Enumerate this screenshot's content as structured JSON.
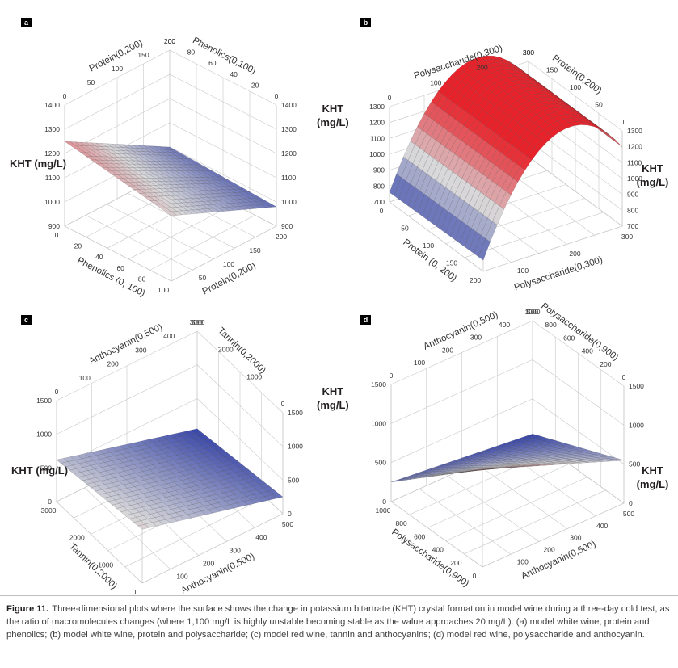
{
  "caption": {
    "title": "Figure 11.",
    "text": "Three-dimensional plots where the surface shows the change in potassium bitartrate (KHT) crystal formation in model wine during a three-day cold test, as the ratio of macromolecules changes (where 1,100 mg/L is highly unstable becoming stable as the value approaches 20 mg/L). (a) model white wine, protein and phenolics; (b) model white wine, protein and polysaccharide; (c) model red wine, tannin and anthocyanins; (d) model red wine, polysaccharide and anthocyanin."
  },
  "colors": {
    "high": "#e8222a",
    "mid": "#d8d8da",
    "low": "#2b3aa5",
    "grid": "#c8c8c8"
  },
  "chart_data": [
    {
      "panel": "a",
      "type": "surface",
      "zlabel": "KHT (mg/L)",
      "axes": {
        "front_left": {
          "label": "Phenolics (0, 100)",
          "ticks": [
            "0",
            "20",
            "40",
            "60",
            "80",
            "100"
          ]
        },
        "front_right": {
          "label": "Protein(0,200)",
          "ticks": [
            "50",
            "100",
            "150",
            "200"
          ]
        },
        "back_left": {
          "label": "Protein(0,200)",
          "ticks": [
            "0",
            "50",
            "100",
            "150",
            "200"
          ]
        },
        "back_right": {
          "label": "Phenolics(0,100)",
          "ticks": [
            "100",
            "80",
            "60",
            "40",
            "20",
            "0"
          ]
        },
        "z_left": {
          "ticks": [
            "1400",
            "1300",
            "1200",
            "1100",
            "1000",
            "900"
          ]
        },
        "z_right": {
          "ticks": [
            "1400",
            "1300",
            "1200",
            "1100",
            "1000",
            "900"
          ]
        }
      },
      "zlim": [
        900,
        1400
      ],
      "surface": {
        "z00": 1170,
        "z10": 1250,
        "z01": 980,
        "z11": 1000,
        "curv": 0
      }
    },
    {
      "panel": "b",
      "type": "surface",
      "zlabel": "KHT (mg/L)",
      "axes": {
        "front_left": {
          "label": "Protein (0, 200)",
          "ticks": [
            "0",
            "50",
            "100",
            "150",
            "200"
          ]
        },
        "front_right": {
          "label": "Polysaccharide(0,300)",
          "ticks": [
            "100",
            "200",
            "300"
          ]
        },
        "back_left": {
          "label": "Polysaccharide(0,300)",
          "ticks": [
            "0",
            "100",
            "200",
            "300"
          ]
        },
        "back_right": {
          "label": "Protein(0,200)",
          "ticks": [
            "200",
            "150",
            "100",
            "50",
            "0"
          ]
        },
        "z_left": {
          "ticks": [
            "1300",
            "1200",
            "1100",
            "1000",
            "900",
            "800",
            "700"
          ]
        },
        "z_right": {
          "ticks": [
            "1300",
            "1200",
            "1100",
            "1000",
            "900",
            "800",
            "700"
          ]
        }
      },
      "zlim": [
        700,
        1300
      ],
      "surface": {
        "z00": 770,
        "z10": 760,
        "z01": 1200,
        "z11": 1200,
        "curv": 420
      }
    },
    {
      "panel": "c",
      "type": "surface",
      "zlabel": "KHT (mg/L)",
      "axes": {
        "front_left": {
          "label": "Tannin(0,2000)",
          "ticks": [
            "3000",
            "2000",
            "1000",
            "0"
          ]
        },
        "front_right": {
          "label": "Anthocyanin(0,500)",
          "ticks": [
            "100",
            "200",
            "300",
            "400",
            "500"
          ]
        },
        "back_left": {
          "label": "Anthocyanin(0,500)",
          "ticks": [
            "0",
            "100",
            "200",
            "300",
            "400",
            "500"
          ]
        },
        "back_right": {
          "label": "Tannin(0,2000)",
          "ticks": [
            "3000",
            "2000",
            "1000",
            "0"
          ]
        },
        "z_left": {
          "ticks": [
            "1500",
            "1000",
            "500",
            "0"
          ]
        },
        "z_right": {
          "ticks": [
            "1500",
            "1000",
            "500",
            "0"
          ]
        }
      },
      "zlim": [
        0,
        1500
      ],
      "surface": {
        "z00": 800,
        "z10": 620,
        "z01": 250,
        "z11": 50,
        "curv": 0,
        "fold": 0.5
      }
    },
    {
      "panel": "d",
      "type": "surface",
      "zlabel": "KHT (mg/L)",
      "axes": {
        "front_left": {
          "label": "Polysaccharide(0,900)",
          "ticks": [
            "1000",
            "800",
            "600",
            "400",
            "200",
            "0"
          ]
        },
        "front_right": {
          "label": "Anthocyanin(0,500)",
          "ticks": [
            "100",
            "200",
            "300",
            "400",
            "500"
          ]
        },
        "back_left": {
          "label": "Anthocyanin(0,500)",
          "ticks": [
            "0",
            "100",
            "200",
            "300",
            "400",
            "500"
          ]
        },
        "back_right": {
          "label": "Polysaccharide(0,900)",
          "ticks": [
            "1000",
            "800",
            "600",
            "400",
            "200",
            "0"
          ]
        },
        "z_left": {
          "ticks": [
            "1500",
            "1000",
            "500",
            "0"
          ]
        },
        "z_right": {
          "ticks": [
            "1500",
            "1000",
            "500",
            "0"
          ]
        }
      },
      "zlim": [
        0,
        1500
      ],
      "surface": {
        "z00": 1250,
        "z10": 250,
        "z01": 550,
        "z11": 50,
        "curv": 0,
        "fold": 0.55
      }
    }
  ]
}
